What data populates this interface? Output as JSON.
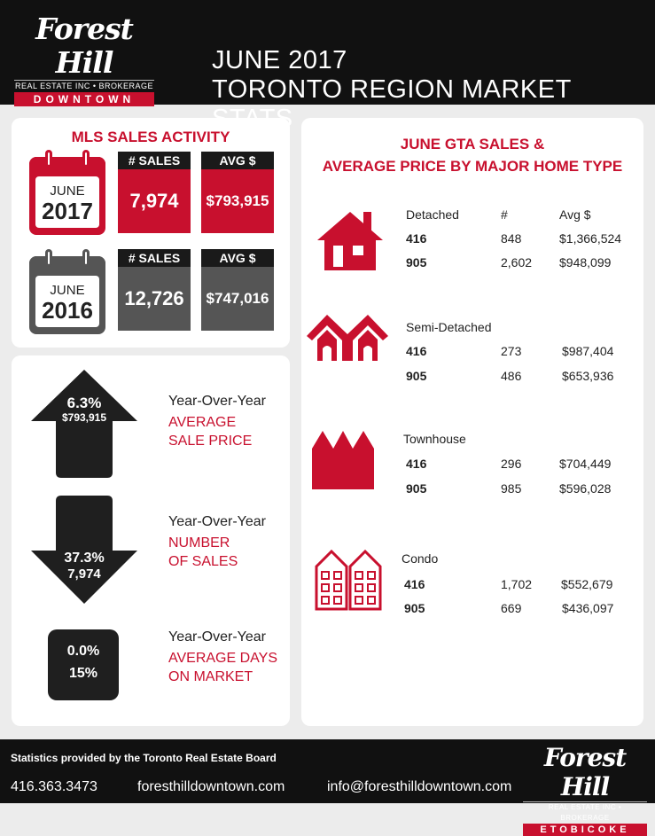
{
  "header": {
    "logo": {
      "script": "Forest Hill",
      "sub": "REAL ESTATE INC • BROKERAGE",
      "band": "DOWNTOWN"
    },
    "title_line1": "JUNE 2017",
    "title_line2": "TORONTO REGION MARKET STATS"
  },
  "mls": {
    "title": "MLS SALES ACTIVITY",
    "rows": [
      {
        "month": "JUNE",
        "year": "2017",
        "sales_label": "# SALES",
        "sales": "7,974",
        "avg_label": "AVG $",
        "avg": "$793,915"
      },
      {
        "month": "JUNE",
        "year": "2016",
        "sales_label": "# SALES",
        "sales": "12,726",
        "avg_label": "AVG $",
        "avg": "$747,016"
      }
    ]
  },
  "yoy": [
    {
      "pct": "6.3%",
      "value": "$793,915",
      "label": "Year-Over-Year",
      "red1": "AVERAGE",
      "red2": "SALE PRICE",
      "direction": "up"
    },
    {
      "pct": "37.3%",
      "value": "7,974",
      "label": "Year-Over-Year",
      "red1": "NUMBER",
      "red2": "OF SALES",
      "direction": "down"
    },
    {
      "pct": "0.0%",
      "value": "15%",
      "label": "Year-Over-Year",
      "red1": "AVERAGE DAYS",
      "red2": "ON MARKET",
      "direction": "flat"
    }
  ],
  "gta": {
    "title_line1": "JUNE GTA SALES &",
    "title_line2": "AVERAGE PRICE BY MAJOR HOME TYPE",
    "col_count": "#",
    "col_avg": "Avg $",
    "types": [
      {
        "name": "Detached",
        "icon": "house-icon",
        "rows": [
          {
            "area": "416",
            "count": "848",
            "avg": "$1,366,524"
          },
          {
            "area": "905",
            "count": "2,602",
            "avg": "$948,099"
          }
        ]
      },
      {
        "name": "Semi-Detached",
        "icon": "semi-detached-icon",
        "rows": [
          {
            "area": "416",
            "count": "273",
            "avg": "$987,404"
          },
          {
            "area": "905",
            "count": "486",
            "avg": "$653,936"
          }
        ]
      },
      {
        "name": "Townhouse",
        "icon": "townhouse-icon",
        "rows": [
          {
            "area": "416",
            "count": "296",
            "avg": "$704,449"
          },
          {
            "area": "905",
            "count": "985",
            "avg": "$596,028"
          }
        ]
      },
      {
        "name": "Condo",
        "icon": "condo-icon",
        "rows": [
          {
            "area": "416",
            "count": "1,702",
            "avg": "$552,679"
          },
          {
            "area": "905",
            "count": "669",
            "avg": "$436,097"
          }
        ]
      }
    ]
  },
  "footer": {
    "source": "Statistics provided by the Toronto Real Estate Board",
    "phone": "416.363.3473",
    "website": "foresthilldowntown.com",
    "email": "info@foresthilldowntown.com",
    "logo": {
      "script": "Forest Hill",
      "sub": "REAL ESTATE INC • BROKERAGE",
      "band": "ETOBICOKE"
    }
  },
  "colors": {
    "red": "#c8102e",
    "dark": "#1a1a1a",
    "gray": "#555555"
  }
}
